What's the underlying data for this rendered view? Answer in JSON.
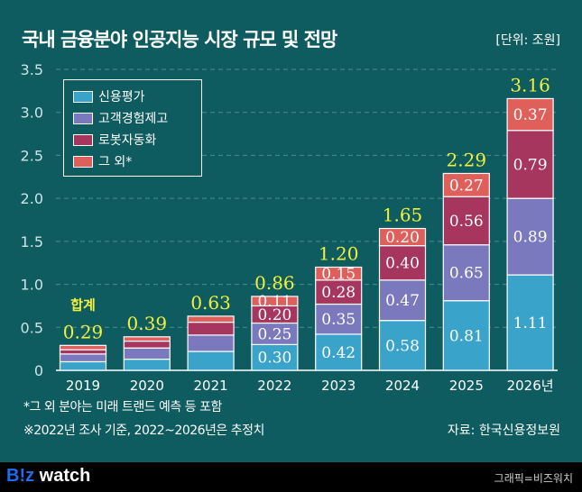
{
  "header": {
    "title": "국내 금융분야 인공지능 시장 규모 및 전망",
    "unit": "[단위: 조원]"
  },
  "chart_data": {
    "type": "bar",
    "stacked": true,
    "categories": [
      "2019",
      "2020",
      "2021",
      "2022",
      "2023",
      "2024",
      "2025",
      "2026년"
    ],
    "series": [
      {
        "name": "신용평가",
        "color": "#3aa3c9",
        "values": [
          0.1,
          0.13,
          0.22,
          0.3,
          0.42,
          0.58,
          0.81,
          1.11
        ],
        "labeled": [
          false,
          false,
          false,
          true,
          true,
          true,
          true,
          true
        ]
      },
      {
        "name": "고객경험제고",
        "color": "#7a79bd",
        "values": [
          0.09,
          0.13,
          0.19,
          0.25,
          0.35,
          0.47,
          0.65,
          0.89
        ],
        "labeled": [
          false,
          false,
          false,
          true,
          true,
          true,
          true,
          true
        ]
      },
      {
        "name": "로봇자동화",
        "color": "#a6365d",
        "values": [
          0.05,
          0.08,
          0.15,
          0.2,
          0.28,
          0.4,
          0.56,
          0.79
        ],
        "labeled": [
          false,
          false,
          false,
          true,
          true,
          true,
          true,
          true
        ]
      },
      {
        "name": "그 외*",
        "color": "#df5f5a",
        "values": [
          0.05,
          0.05,
          0.07,
          0.11,
          0.15,
          0.2,
          0.27,
          0.37
        ],
        "labeled": [
          false,
          false,
          false,
          true,
          true,
          true,
          true,
          true
        ]
      }
    ],
    "totals": [
      "0.29",
      "0.39",
      "0.63",
      "0.86",
      "1.20",
      "1.65",
      "2.29",
      "3.16"
    ],
    "total_label": "합계",
    "ylim": [
      0,
      3.5
    ],
    "yticks": [
      "0",
      "0.5",
      "1.0",
      "1.5",
      "2.0",
      "2.5",
      "3.0",
      "3.5"
    ],
    "grid": true,
    "legend": "top-left"
  },
  "notes": [
    "*그 외 분야는 미래 트랜드 예측 등 포함",
    "※2022년 조사 기준, 2022~2026년은 추정치"
  ],
  "source": "자료: 한국신용정보원",
  "footer": {
    "logo": "B!z watch",
    "credit": "그래픽=비즈워치"
  }
}
